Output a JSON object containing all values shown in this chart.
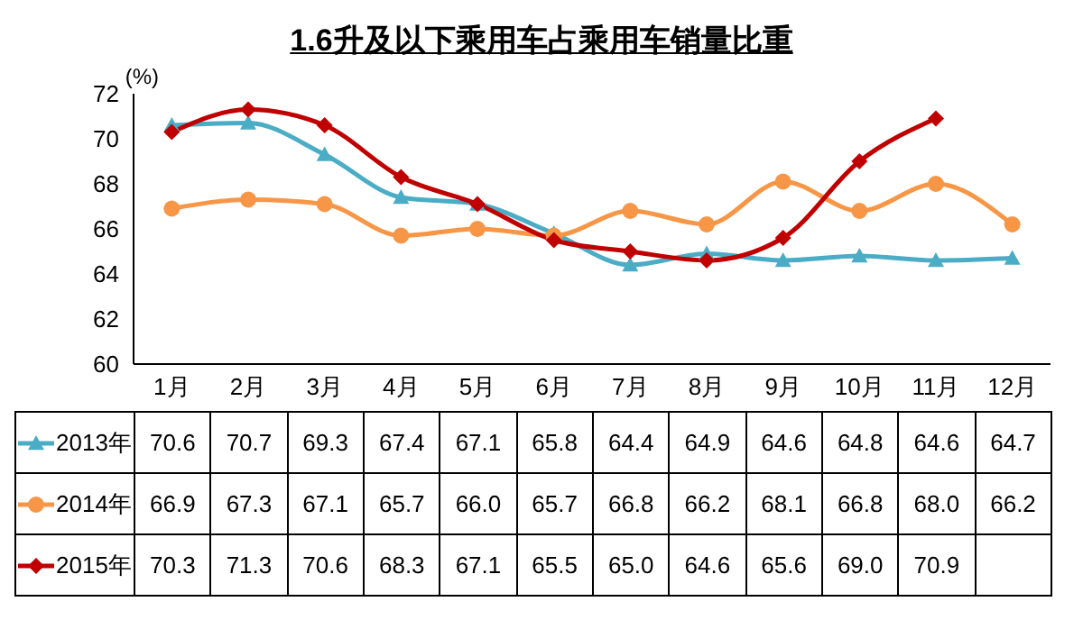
{
  "chart_data": {
    "type": "line",
    "title": "1.6升及以下乘用车占乘用车销量比重",
    "ylabel": "(%)",
    "categories": [
      "1月",
      "2月",
      "3月",
      "4月",
      "5月",
      "6月",
      "7月",
      "8月",
      "9月",
      "10月",
      "11月",
      "12月"
    ],
    "series": [
      {
        "name": "2013年",
        "color": "#4bacc6",
        "marker": "triangle",
        "values": [
          70.6,
          70.7,
          69.3,
          67.4,
          67.1,
          65.8,
          64.4,
          64.9,
          64.6,
          64.8,
          64.6,
          64.7
        ],
        "value_labels": [
          "70.6",
          "70.7",
          "69.3",
          "67.4",
          "67.1",
          "65.8",
          "64.4",
          "64.9",
          "64.6",
          "64.8",
          "64.6",
          "64.7"
        ]
      },
      {
        "name": "2014年",
        "color": "#f79646",
        "marker": "circle",
        "values": [
          66.9,
          67.3,
          67.1,
          65.7,
          66.0,
          65.7,
          66.8,
          66.2,
          68.1,
          66.8,
          68.0,
          66.2
        ],
        "value_labels": [
          "66.9",
          "67.3",
          "67.1",
          "65.7",
          "66.0",
          "65.7",
          "66.8",
          "66.2",
          "68.1",
          "66.8",
          "68.0",
          "66.2"
        ]
      },
      {
        "name": "2015年",
        "color": "#c00000",
        "marker": "diamond",
        "values": [
          70.3,
          71.3,
          70.6,
          68.3,
          67.1,
          65.5,
          65.0,
          64.6,
          65.6,
          69.0,
          70.9,
          null
        ],
        "value_labels": [
          "70.3",
          "71.3",
          "70.6",
          "68.3",
          "67.1",
          "65.5",
          "65.0",
          "64.6",
          "65.6",
          "69.0",
          "70.9",
          null
        ]
      }
    ],
    "ylim": [
      60,
      72
    ],
    "yticks": [
      60,
      62,
      64,
      66,
      68,
      70,
      72
    ],
    "legend": "bottom"
  }
}
